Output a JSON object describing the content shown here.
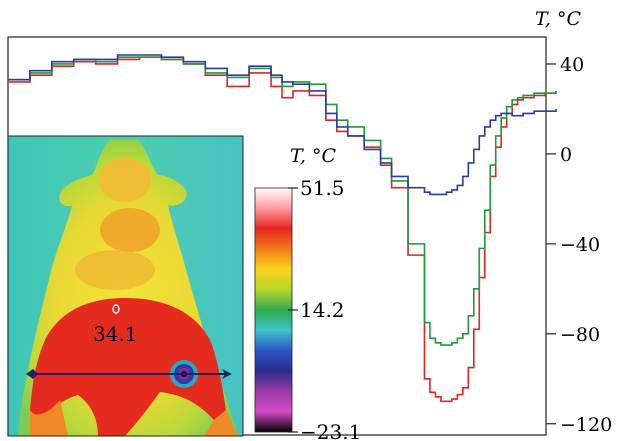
{
  "chart_data": [
    {
      "type": "line",
      "ylabel": "T, °C",
      "ylim": [
        -125,
        52
      ],
      "yticks": [
        40,
        0,
        -40,
        -80,
        -120
      ],
      "ytick_labels": [
        "40",
        "0",
        "−40",
        "−80",
        "−120"
      ],
      "xlim": [
        0,
        100
      ],
      "series": [
        {
          "color": "#e02424",
          "x": [
            0,
            4,
            8,
            12,
            16,
            20,
            24,
            28,
            32,
            36,
            40,
            44,
            48,
            50,
            52,
            55,
            58,
            60,
            62,
            65,
            68,
            70,
            73,
            76,
            77,
            78,
            79,
            80,
            81,
            82,
            83,
            84,
            85,
            86,
            87,
            88,
            89,
            90,
            91,
            92,
            93,
            94,
            96,
            98,
            100
          ],
          "y": [
            32,
            35,
            39,
            41,
            40,
            42,
            43,
            42,
            40,
            35,
            30,
            36,
            30,
            25,
            28,
            26,
            15,
            10,
            8,
            3,
            -5,
            -15,
            -45,
            -100,
            -106,
            -108,
            -110,
            -110,
            -109,
            -107,
            -104,
            -95,
            -78,
            -55,
            -35,
            -10,
            3,
            12,
            18,
            22,
            24,
            25,
            26,
            27,
            28
          ]
        },
        {
          "color": "#1f9a3a",
          "x": [
            0,
            4,
            8,
            12,
            16,
            20,
            24,
            28,
            32,
            36,
            40,
            44,
            48,
            50,
            52,
            55,
            58,
            60,
            62,
            65,
            68,
            70,
            73,
            76,
            77,
            78,
            79,
            80,
            81,
            82,
            83,
            84,
            85,
            86,
            87,
            88,
            89,
            90,
            91,
            92,
            93,
            94,
            96,
            98,
            100
          ],
          "y": [
            33,
            36,
            40,
            42,
            41,
            43,
            43,
            42,
            40,
            36,
            34,
            38,
            34,
            30,
            32,
            31,
            22,
            15,
            12,
            6,
            -2,
            -12,
            -40,
            -75,
            -82,
            -84,
            -85,
            -85,
            -84,
            -82,
            -80,
            -72,
            -60,
            -42,
            -25,
            -5,
            8,
            16,
            21,
            24,
            25,
            26,
            27,
            27,
            28
          ]
        },
        {
          "color": "#2c3aa8",
          "x": [
            0,
            4,
            8,
            12,
            16,
            20,
            24,
            28,
            32,
            36,
            40,
            44,
            48,
            50,
            52,
            55,
            58,
            60,
            62,
            65,
            68,
            70,
            73,
            76,
            77,
            78,
            79,
            80,
            81,
            82,
            83,
            84,
            85,
            86,
            87,
            88,
            89,
            90,
            91,
            92,
            93,
            94,
            96,
            98,
            100
          ],
          "y": [
            33,
            37,
            41,
            42,
            42,
            44,
            44,
            43,
            41,
            38,
            35,
            39,
            35,
            32,
            31,
            28,
            18,
            12,
            8,
            2,
            -4,
            -10,
            -15,
            -17,
            -18,
            -18,
            -18,
            -17,
            -16,
            -14,
            -10,
            -4,
            2,
            8,
            12,
            15,
            17,
            18,
            18,
            17,
            17,
            18,
            19,
            19,
            20
          ]
        }
      ]
    },
    {
      "type": "heatmap",
      "colorbar_label": "T, °C",
      "colorbar_labels": [
        "51.5",
        "14.2",
        "−23.1"
      ],
      "colorbar_values": [
        51.5,
        14.2,
        -23.1
      ],
      "colorbar_stops": [
        "#ffffff",
        "#ff9aa0",
        "#e8231f",
        "#f47a1e",
        "#f9d21a",
        "#b8d52c",
        "#2ea84c",
        "#3bc5c8",
        "#2c57c7",
        "#2b2c8c",
        "#9a3aa6",
        "#d64ac7",
        "#000000"
      ],
      "annotation": "34.1",
      "annotation_value": 34.1
    }
  ]
}
